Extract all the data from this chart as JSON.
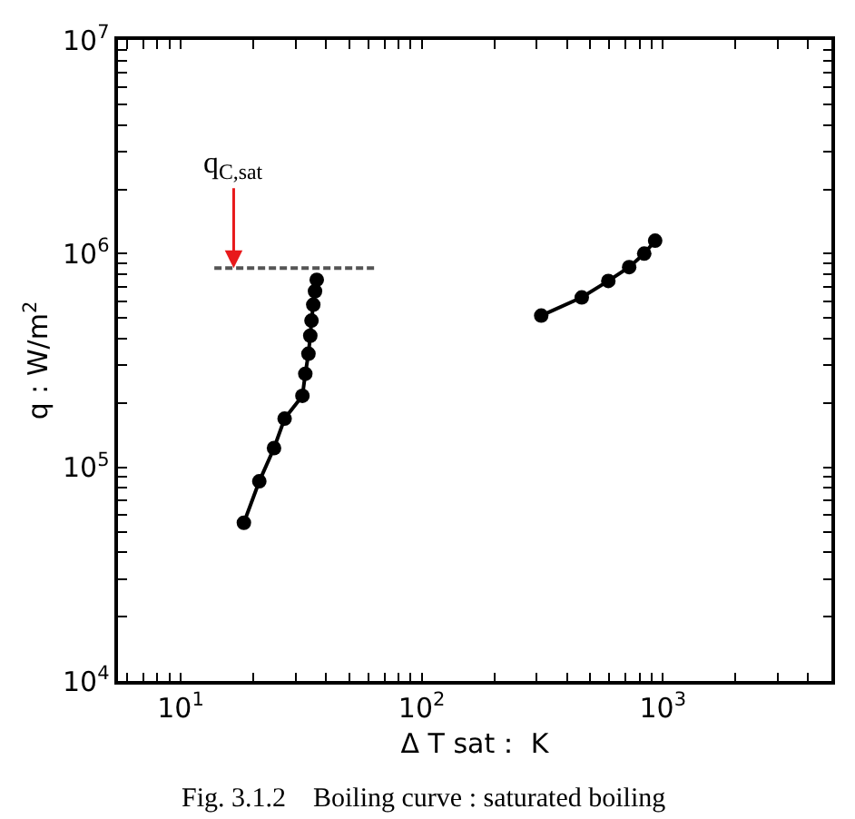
{
  "chart_data": {
    "type": "line",
    "xlabel": "Δ T sat： K",
    "ylabel": "q : W/m$^{2}$",
    "log": "xy",
    "marker": "circle",
    "xlim": [
      5.5,
      5000
    ],
    "ylim": [
      10000,
      10000000
    ],
    "xticks": [
      {
        "value": 6,
        "label": null
      },
      {
        "value": 7,
        "label": null
      },
      {
        "value": 8,
        "label": null
      },
      {
        "value": 9,
        "label": null
      },
      {
        "value": 10,
        "label": "10$^{1}$"
      },
      {
        "value": 20,
        "label": null
      },
      {
        "value": 30,
        "label": null
      },
      {
        "value": 40,
        "label": null
      },
      {
        "value": 50,
        "label": null
      },
      {
        "value": 60,
        "label": null
      },
      {
        "value": 70,
        "label": null
      },
      {
        "value": 80,
        "label": null
      },
      {
        "value": 90,
        "label": null
      },
      {
        "value": 100,
        "label": "10$^{2}$"
      },
      {
        "value": 200,
        "label": null
      },
      {
        "value": 300,
        "label": null
      },
      {
        "value": 400,
        "label": null
      },
      {
        "value": 500,
        "label": null
      },
      {
        "value": 600,
        "label": null
      },
      {
        "value": 700,
        "label": null
      },
      {
        "value": 800,
        "label": null
      },
      {
        "value": 900,
        "label": null
      },
      {
        "value": 1000,
        "label": "10$^{3}$"
      },
      {
        "value": 2000,
        "label": null
      },
      {
        "value": 3000,
        "label": null
      },
      {
        "value": 4000,
        "label": null
      }
    ],
    "yticks": [
      {
        "value": 10000,
        "label": "10$^{4}$"
      },
      {
        "value": 20000,
        "label": null
      },
      {
        "value": 30000,
        "label": null
      },
      {
        "value": 40000,
        "label": null
      },
      {
        "value": 50000,
        "label": null
      },
      {
        "value": 60000,
        "label": null
      },
      {
        "value": 70000,
        "label": null
      },
      {
        "value": 80000,
        "label": null
      },
      {
        "value": 90000,
        "label": null
      },
      {
        "value": 100000,
        "label": "10$^{5}$"
      },
      {
        "value": 200000,
        "label": null
      },
      {
        "value": 300000,
        "label": null
      },
      {
        "value": 400000,
        "label": null
      },
      {
        "value": 500000,
        "label": null
      },
      {
        "value": 600000,
        "label": null
      },
      {
        "value": 700000,
        "label": null
      },
      {
        "value": 800000,
        "label": null
      },
      {
        "value": 900000,
        "label": null
      },
      {
        "value": 1000000,
        "label": "10$^{6}$"
      },
      {
        "value": 2000000,
        "label": null
      },
      {
        "value": 3000000,
        "label": null
      },
      {
        "value": 4000000,
        "label": null
      },
      {
        "value": 5000000,
        "label": null
      },
      {
        "value": 6000000,
        "label": null
      },
      {
        "value": 7000000,
        "label": null
      },
      {
        "value": 8000000,
        "label": null
      },
      {
        "value": 9000000,
        "label": null
      },
      {
        "value": 10000000,
        "label": "10$^{7}$"
      }
    ],
    "series": [
      {
        "color": "#000000",
        "x": [
          18.3,
          21.2,
          24.4,
          27.0,
          32.0,
          32.9,
          33.9,
          34.5,
          34.9,
          35.5,
          36.1,
          36.7
        ],
        "values": [
          55000,
          86000,
          123000,
          169000,
          216000,
          274000,
          340000,
          413000,
          486000,
          577000,
          667000,
          754000
        ]
      },
      {
        "color": "#000000",
        "x": [
          313,
          461,
          594,
          725,
          837,
          929
        ],
        "values": [
          513000,
          624000,
          745000,
          865000,
          1000000,
          1150000
        ]
      },
      {
        "color": "#555555",
        "x": [
          13.8,
          64.7
        ],
        "values": [
          855000,
          855000
        ],
        "marker": "none",
        "line_style": "dashed"
      }
    ],
    "annotations": [
      {
        "text": "q$_{C,sat}$",
        "x": 16.6,
        "y": 855000
      },
      "Fig. 3.1.2　Boiling curve : saturated boiling"
    ]
  }
}
